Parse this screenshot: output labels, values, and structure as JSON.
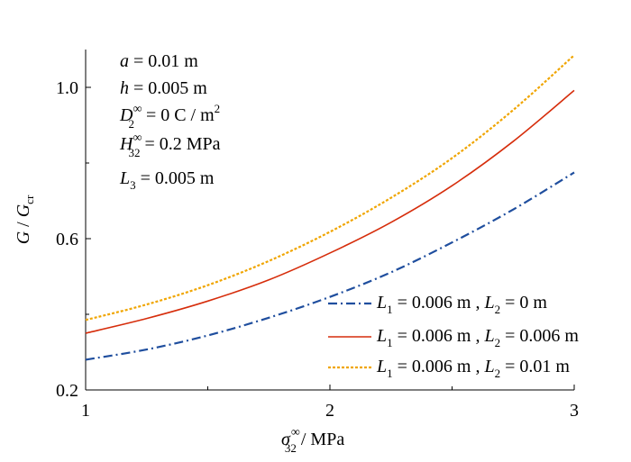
{
  "chart_data": {
    "type": "line",
    "xlim": [
      1,
      3
    ],
    "ylim": [
      0.2,
      1.1
    ],
    "x_ticks": [
      1,
      2,
      3
    ],
    "y_ticks": [
      0.2,
      0.6,
      1.0
    ],
    "x_tick_labels": [
      "1",
      "2",
      "3"
    ],
    "y_tick_labels": [
      "0.2",
      "0.6",
      "1.0"
    ],
    "x_minor_ticks": [
      1.5,
      2.5
    ],
    "y_minor_ticks": [
      0.4,
      0.8
    ],
    "grid": false,
    "legend_position": "bottom-right",
    "xlabel": {
      "sym": "σ",
      "sup": "∞",
      "sub": "32",
      "unit": " / MPa"
    },
    "ylabel": {
      "sym": "G",
      "mid": " / ",
      "sym2": "G",
      "sub2": "cr"
    },
    "annotations": {
      "a": {
        "sym": "a",
        "val": " = 0.01 m"
      },
      "h": {
        "sym": "h",
        "val": " = 0.005 m"
      },
      "D": {
        "sym": "D",
        "sup": "∞",
        "sub": "2",
        "val": " = 0 C / m",
        "unit_sup": "2"
      },
      "H": {
        "sym": "H",
        "sup": "∞",
        "sub": "32",
        "val": " = 0.2 MPa"
      },
      "L3": {
        "sym": "L",
        "sub": "3",
        "val": " = 0.005 m"
      }
    },
    "x": [
      1.0,
      1.25,
      1.5,
      1.75,
      2.0,
      2.25,
      2.5,
      2.75,
      3.0
    ],
    "series": [
      {
        "legend": {
          "l1": "L",
          "l1sub": "1",
          "l1val": " = 0.006 m , ",
          "l2": "L",
          "l2sub": "2",
          "l2val": " = 0 m"
        },
        "color": "#1f4e9e",
        "dash": "dashdot",
        "values": [
          0.28,
          0.307,
          0.344,
          0.391,
          0.446,
          0.511,
          0.59,
          0.677,
          0.775
        ]
      },
      {
        "legend": {
          "l1": "L",
          "l1sub": "1",
          "l1val": " = 0.006 m , ",
          "l2": "L",
          "l2sub": "2",
          "l2val": " = 0.006 m"
        },
        "color": "#d62d0b",
        "dash": "solid",
        "values": [
          0.35,
          0.389,
          0.435,
          0.491,
          0.562,
          0.643,
          0.74,
          0.857,
          0.992
        ]
      },
      {
        "legend": {
          "l1": "L",
          "l1sub": "1",
          "l1val": " = 0.006 m , ",
          "l2": "L",
          "l2sub": "2",
          "l2val": " = 0.01 m"
        },
        "color": "#f0a500",
        "dash": "dotted",
        "values": [
          0.385,
          0.426,
          0.477,
          0.541,
          0.618,
          0.708,
          0.813,
          0.94,
          1.085
        ]
      }
    ]
  }
}
